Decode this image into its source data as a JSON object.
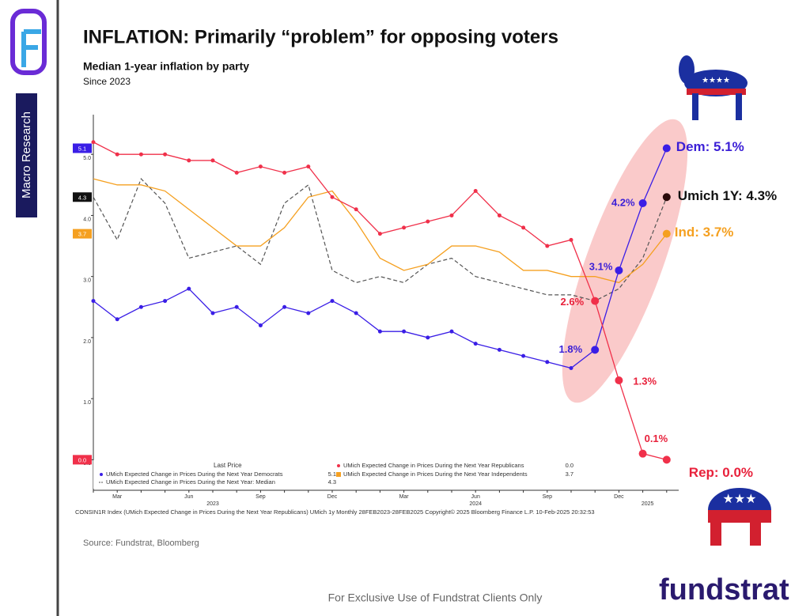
{
  "slide": {
    "sidebar": "Macro Research",
    "source": "Source: Fundstrat, Bloomberg",
    "footer": "For Exclusive Use of Fundstrat Clients Only",
    "brand": "fundstrat"
  },
  "chart_data": {
    "type": "line",
    "title": "INFLATION: Primarily “problem” for opposing voters",
    "subtitle": "Median 1-year inflation by party",
    "subtitle2": "Since 2023",
    "legend_title": "Last Price",
    "footnote": "CONSIN1R Index (UMich Expected Change in Prices During the Next Year Republicans) UMich 1y  Monthly 28FEB2023-28FEB2025  Copyright© 2025 Bloomberg Finance L.P.   10-Feb-2025 20:32:53",
    "categories": [
      null,
      "Mar",
      null,
      null,
      "Jun",
      null,
      null,
      "Sep",
      null,
      null,
      "Dec",
      null,
      null,
      "Mar",
      null,
      null,
      "Jun",
      null,
      null,
      "Sep",
      null,
      null,
      "Dec",
      null,
      null
    ],
    "year_labels": [
      "2023",
      "2024",
      "2025"
    ],
    "ylim": [
      -0.5,
      5.65
    ],
    "yticks": [
      {
        "value": 0,
        "label": "0.0"
      },
      {
        "value": 1,
        "label": "1.0"
      },
      {
        "value": 2,
        "label": "2.0"
      },
      {
        "value": 3,
        "label": "3.0"
      },
      {
        "value": 4,
        "label": "4.0"
      },
      {
        "value": 5,
        "label": "5.0"
      }
    ],
    "series": [
      {
        "name": "UMich Expected Change in Prices During the Next Year Democrats",
        "color": "#3a1ee6",
        "last_label": "5.1",
        "values": [
          2.6,
          2.3,
          2.5,
          2.6,
          2.8,
          2.4,
          2.5,
          2.2,
          2.5,
          2.4,
          2.6,
          2.4,
          2.1,
          2.1,
          2.0,
          2.1,
          1.9,
          1.8,
          1.7,
          1.6,
          1.5,
          1.8,
          3.1,
          4.2,
          5.1
        ],
        "value_labels": [
          null,
          null,
          null,
          null,
          null,
          null,
          null,
          null,
          null,
          null,
          null,
          null,
          null,
          null,
          null,
          null,
          null,
          null,
          null,
          null,
          null,
          "1.8%",
          "3.1%",
          "4.2%",
          "Dem: 5.1%"
        ]
      },
      {
        "name": "UMich Expected Change in Prices During the Next Year Republicans",
        "color": "#f0304a",
        "last_label": "0.0",
        "values": [
          5.2,
          5.0,
          5.0,
          5.0,
          4.9,
          4.9,
          4.7,
          4.8,
          4.7,
          4.8,
          4.3,
          4.1,
          3.7,
          3.8,
          3.9,
          4.0,
          4.4,
          4.0,
          3.8,
          3.5,
          3.6,
          2.6,
          1.3,
          0.1,
          0.0
        ],
        "value_labels": [
          null,
          null,
          null,
          null,
          null,
          null,
          null,
          null,
          null,
          null,
          null,
          null,
          null,
          null,
          null,
          null,
          null,
          null,
          null,
          null,
          null,
          "2.6%",
          "1.3%",
          "0.1%",
          "Rep: 0.0%"
        ]
      },
      {
        "name": "UMich Expected Change in Prices During the Next Year: Median",
        "color": "#555555",
        "last_label": "4.3",
        "values": [
          4.3,
          3.6,
          4.6,
          4.2,
          3.3,
          3.4,
          3.5,
          3.2,
          4.2,
          4.5,
          3.1,
          2.9,
          3.0,
          2.9,
          3.2,
          3.3,
          3.0,
          2.9,
          2.8,
          2.7,
          2.7,
          2.6,
          2.8,
          3.3,
          4.3
        ],
        "value_labels": [
          null,
          null,
          null,
          null,
          null,
          null,
          null,
          null,
          null,
          null,
          null,
          null,
          null,
          null,
          null,
          null,
          null,
          null,
          null,
          null,
          null,
          null,
          null,
          null,
          "Umich 1Y: 4.3%"
        ]
      },
      {
        "name": "UMich Expected Change in Prices During the Next Year Independents",
        "color": "#f5a020",
        "last_label": "3.7",
        "values": [
          4.6,
          4.5,
          4.5,
          4.4,
          4.1,
          3.8,
          3.5,
          3.5,
          3.8,
          4.3,
          4.4,
          3.9,
          3.3,
          3.1,
          3.2,
          3.5,
          3.5,
          3.4,
          3.1,
          3.1,
          3.0,
          3.0,
          2.9,
          3.2,
          3.7
        ],
        "value_labels": [
          null,
          null,
          null,
          null,
          null,
          null,
          null,
          null,
          null,
          null,
          null,
          null,
          null,
          null,
          null,
          null,
          null,
          null,
          null,
          null,
          null,
          null,
          null,
          null,
          "Ind: 3.7%"
        ]
      }
    ]
  }
}
